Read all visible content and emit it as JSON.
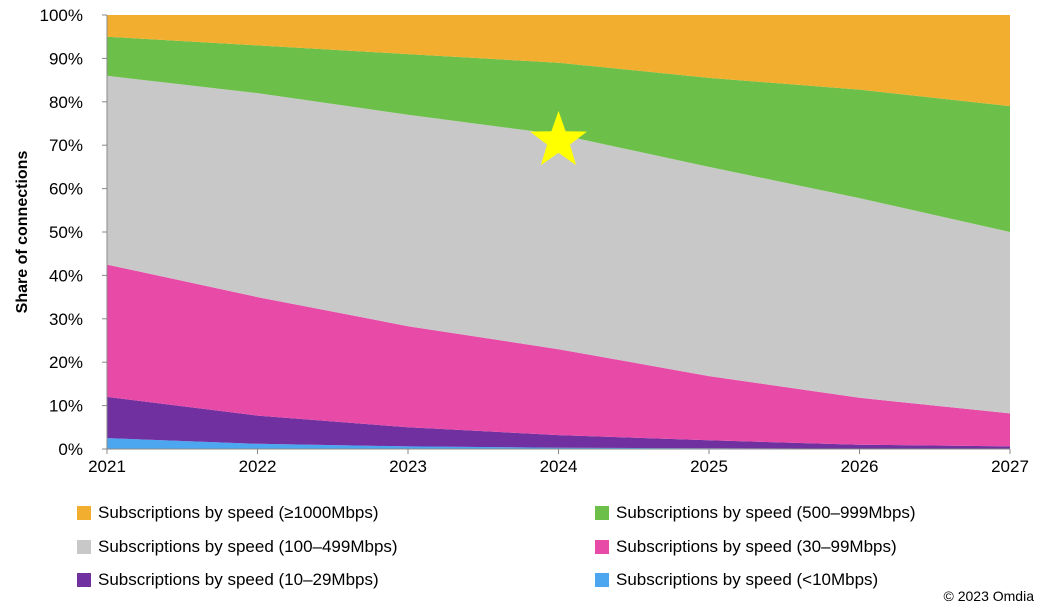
{
  "chart_data": {
    "type": "area",
    "stacked": true,
    "normalized_percent": true,
    "x": [
      "2021",
      "2022",
      "2023",
      "2024",
      "2025",
      "2026",
      "2027"
    ],
    "ylabel": "Share of connections",
    "ylim": [
      0,
      100
    ],
    "yticks": [
      "0%",
      "10%",
      "20%",
      "30%",
      "40%",
      "50%",
      "60%",
      "70%",
      "80%",
      "90%",
      "100%"
    ],
    "grid": false,
    "legend_position": "bottom",
    "series": [
      {
        "name": "Subscriptions by speed (<10Mbps)",
        "color": "#4da6f0",
        "values": [
          2.5,
          1.2,
          0.6,
          0.3,
          0.15,
          0.1,
          0.05
        ]
      },
      {
        "name": "Subscriptions by speed (10–29Mbps)",
        "color": "#7030a0",
        "values": [
          9.5,
          6.5,
          4.4,
          2.9,
          1.85,
          0.9,
          0.55
        ]
      },
      {
        "name": "Subscriptions by speed (30–99Mbps)",
        "color": "#e84aa8",
        "values": [
          30.5,
          27.3,
          23.3,
          19.8,
          14.8,
          10.8,
          7.6
        ]
      },
      {
        "name": "Subscriptions by speed (100–499Mbps)",
        "color": "#c8c8c8",
        "values": [
          43.5,
          47.0,
          48.7,
          49.5,
          48.2,
          46.0,
          41.8
        ]
      },
      {
        "name": "Subscriptions by speed (500–999Mbps)",
        "color": "#6cc04a",
        "values": [
          9.0,
          11.0,
          14.0,
          16.5,
          20.5,
          25.0,
          29.0
        ]
      },
      {
        "name": "Subscriptions by speed (≥1000Mbps)",
        "color": "#f2ae2e",
        "values": [
          5.0,
          7.0,
          9.0,
          11.0,
          14.5,
          17.2,
          21.0
        ]
      }
    ],
    "legend_order": [
      5,
      4,
      3,
      2,
      1,
      0
    ],
    "annotation": {
      "shape": "star",
      "color": "#ffff00",
      "x": "2024",
      "y": 71
    }
  },
  "credit": "© 2023 Omdia"
}
